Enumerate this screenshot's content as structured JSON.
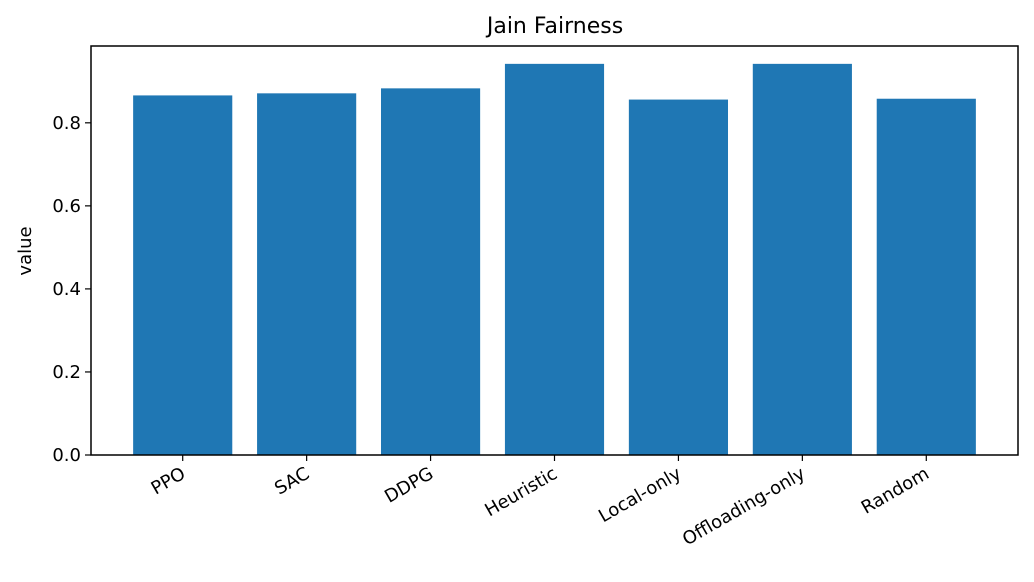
{
  "chart_data": {
    "type": "bar",
    "title": "Jain Fairness",
    "xlabel": "",
    "ylabel": "value",
    "categories": [
      "PPO",
      "SAC",
      "DDPG",
      "Heuristic",
      "Local-only",
      "Offloading-only",
      "Random"
    ],
    "values": [
      0.866,
      0.871,
      0.883,
      0.942,
      0.856,
      0.942,
      0.858
    ],
    "ylim": [
      0,
      0.985
    ],
    "yticks": [
      "0.0",
      "0.2",
      "0.4",
      "0.6",
      "0.8"
    ],
    "xtick_rotation": "30 degrees",
    "grid": false,
    "legend": false,
    "bar_color": "#1f77b4"
  }
}
